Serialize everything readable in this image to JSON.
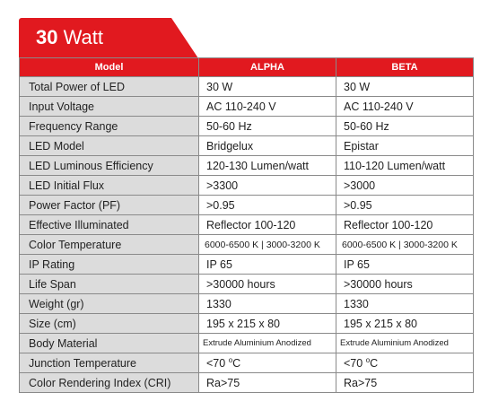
{
  "tab": {
    "number": "30",
    "unit": " Watt"
  },
  "header": {
    "model": "Model",
    "alpha": "ALPHA",
    "beta": "BETA"
  },
  "rows": [
    {
      "label": "Total Power of LED",
      "alpha": "30 W",
      "beta": "30 W"
    },
    {
      "label": "Input Voltage",
      "alpha": "AC 110-240 V",
      "beta": "AC 110-240 V"
    },
    {
      "label": "Frequency Range",
      "alpha": "50-60 Hz",
      "beta": "50-60 Hz"
    },
    {
      "label": "LED Model",
      "alpha": "Bridgelux",
      "beta": "Epistar"
    },
    {
      "label": "LED Luminous Efficiency",
      "alpha": "120-130 Lumen/watt",
      "beta": "110-120 Lumen/watt"
    },
    {
      "label": "LED Initial Flux",
      "alpha": ">3300",
      "beta": ">3000"
    },
    {
      "label": "Power Factor (PF)",
      "alpha": ">0.95",
      "beta": ">0.95"
    },
    {
      "label": "Effective Illuminated",
      "alpha": "Reflector 100-120",
      "beta": "Reflector 100-120"
    },
    {
      "label": "Color Temperature",
      "alpha": "6000-6500 K | 3000-3200 K",
      "beta": "6000-6500 K | 3000-3200 K"
    },
    {
      "label": "IP Rating",
      "alpha": "IP 65",
      "beta": "IP 65"
    },
    {
      "label": "Life Span",
      "alpha": ">30000 hours",
      "beta": ">30000 hours"
    },
    {
      "label": "Weight (gr)",
      "alpha": "1330",
      "beta": "1330"
    },
    {
      "label": "Size (cm)",
      "alpha": "195 x 215 x 80",
      "beta": "195 x 215 x 80"
    },
    {
      "label": "Body Material",
      "alpha": "Extrude Aluminium Anodized",
      "beta": "Extrude Aluminium Anodized"
    },
    {
      "label": "Junction Temperature",
      "alpha_value": "<70 ",
      "beta_value": "<70 ",
      "degree": "o",
      "unit": "C"
    },
    {
      "label": "Color Rendering Index (CRI)",
      "alpha": "Ra>75",
      "beta": "Ra>75"
    }
  ]
}
